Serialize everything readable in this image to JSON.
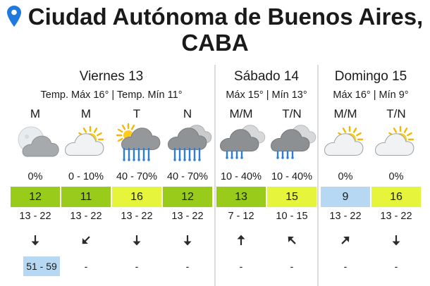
{
  "location": {
    "line1": "Ciudad Autónoma de Buenos Aires,",
    "line2": "CABA",
    "icon": "map-pin-icon",
    "icon_color": "#1f7ae0"
  },
  "colors": {
    "uv_green": "#99cc1a",
    "uv_yellow": "#e6f53b",
    "uv_blue": "#b7d8f2",
    "gust_blue": "#b7d8f2",
    "separator": "#dcdcdc"
  },
  "days": [
    {
      "name": "Viernes 13",
      "temps": "Temp. Máx 16° | Temp. Mín 11°",
      "slots": [
        {
          "label": "M",
          "icon": "moon-cloud-icon",
          "prob": "0%",
          "uv": "12",
          "uv_color": "#99cc1a",
          "range": "13 - 22",
          "wind": "arrow-down-icon",
          "gust": "51 - 59"
        },
        {
          "label": "M",
          "icon": "sun-cloud-icon",
          "prob": "0 - 10%",
          "uv": "11",
          "uv_color": "#99cc1a",
          "range": "13 - 22",
          "wind": "arrow-down-left-icon",
          "gust": "-"
        },
        {
          "label": "T",
          "icon": "sun-cloud-rain-icon",
          "prob": "40 - 70%",
          "uv": "16",
          "uv_color": "#e6f53b",
          "range": "13 - 22",
          "wind": "arrow-down-icon",
          "gust": "-"
        },
        {
          "label": "N",
          "icon": "cloud-rain-icon",
          "prob": "40 - 70%",
          "uv": "12",
          "uv_color": "#99cc1a",
          "range": "13 - 22",
          "wind": "arrow-down-icon",
          "gust": "-"
        }
      ]
    },
    {
      "name": "Sábado 14",
      "temps": "Máx 15° | Mín 13°",
      "slots": [
        {
          "label": "M/M",
          "icon": "cloud-light-rain-icon",
          "prob": "10 - 40%",
          "uv": "13",
          "uv_color": "#99cc1a",
          "range": "7 - 12",
          "wind": "arrow-up-icon",
          "gust": "-"
        },
        {
          "label": "T/N",
          "icon": "cloud-light-rain-icon",
          "prob": "10 - 40%",
          "uv": "15",
          "uv_color": "#e6f53b",
          "range": "10 - 15",
          "wind": "arrow-up-left-icon",
          "gust": "-"
        }
      ]
    },
    {
      "name": "Domingo 15",
      "temps": "Máx 16° | Mín 9°",
      "slots": [
        {
          "label": "M/M",
          "icon": "sun-cloud-icon",
          "prob": "0%",
          "uv": "9",
          "uv_color": "#b7d8f2",
          "range": "13 - 22",
          "wind": "arrow-up-right-icon",
          "gust": "-"
        },
        {
          "label": "T/N",
          "icon": "sun-cloud-icon",
          "prob": "0%",
          "uv": "16",
          "uv_color": "#e6f53b",
          "range": "13 - 22",
          "wind": "arrow-down-icon",
          "gust": "-"
        }
      ]
    }
  ]
}
